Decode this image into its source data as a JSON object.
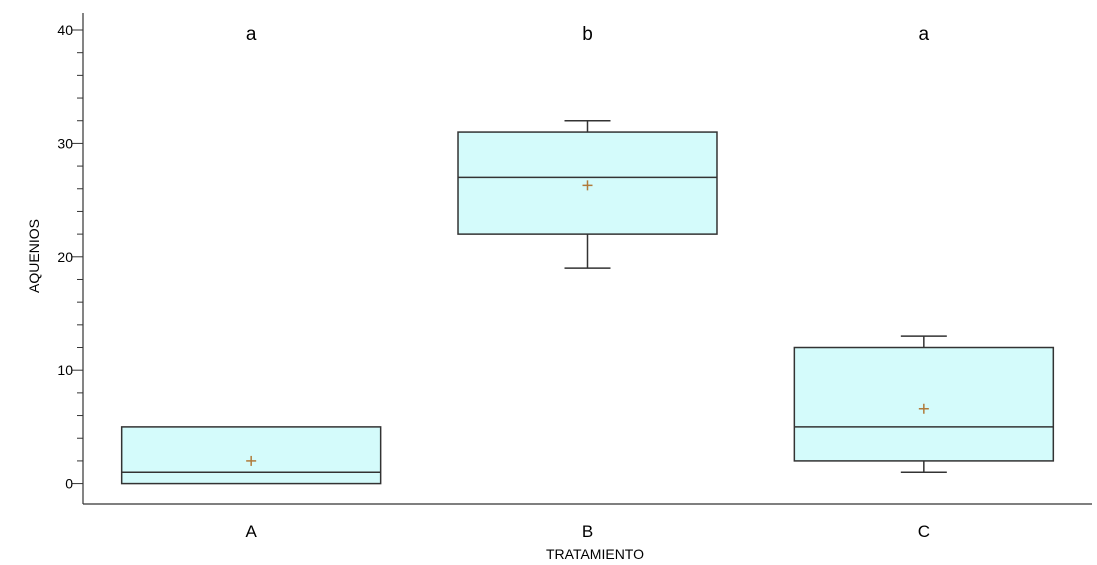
{
  "chart_data": {
    "type": "boxplot",
    "xlabel": "TRATAMIENTO",
    "ylabel": "AQUENIOS",
    "ylim": [
      -1.8,
      41.5
    ],
    "yticks": [
      "0",
      "10",
      "20",
      "30",
      "40"
    ],
    "grid": false,
    "box_color": "#d4fbfb",
    "line_color": "#333333",
    "mean_color": "#b07a3a",
    "groups": [
      {
        "category": "A",
        "letter": "a",
        "min": 0,
        "q1": 0,
        "median": 1,
        "q3": 5,
        "max": 5,
        "mean": 2
      },
      {
        "category": "B",
        "letter": "b",
        "min": 19,
        "q1": 22,
        "median": 27,
        "q3": 31,
        "max": 32,
        "mean": 26.3
      },
      {
        "category": "C",
        "letter": "a",
        "min": 1,
        "q1": 2,
        "median": 5,
        "q3": 12,
        "max": 13,
        "mean": 6.6
      }
    ]
  }
}
